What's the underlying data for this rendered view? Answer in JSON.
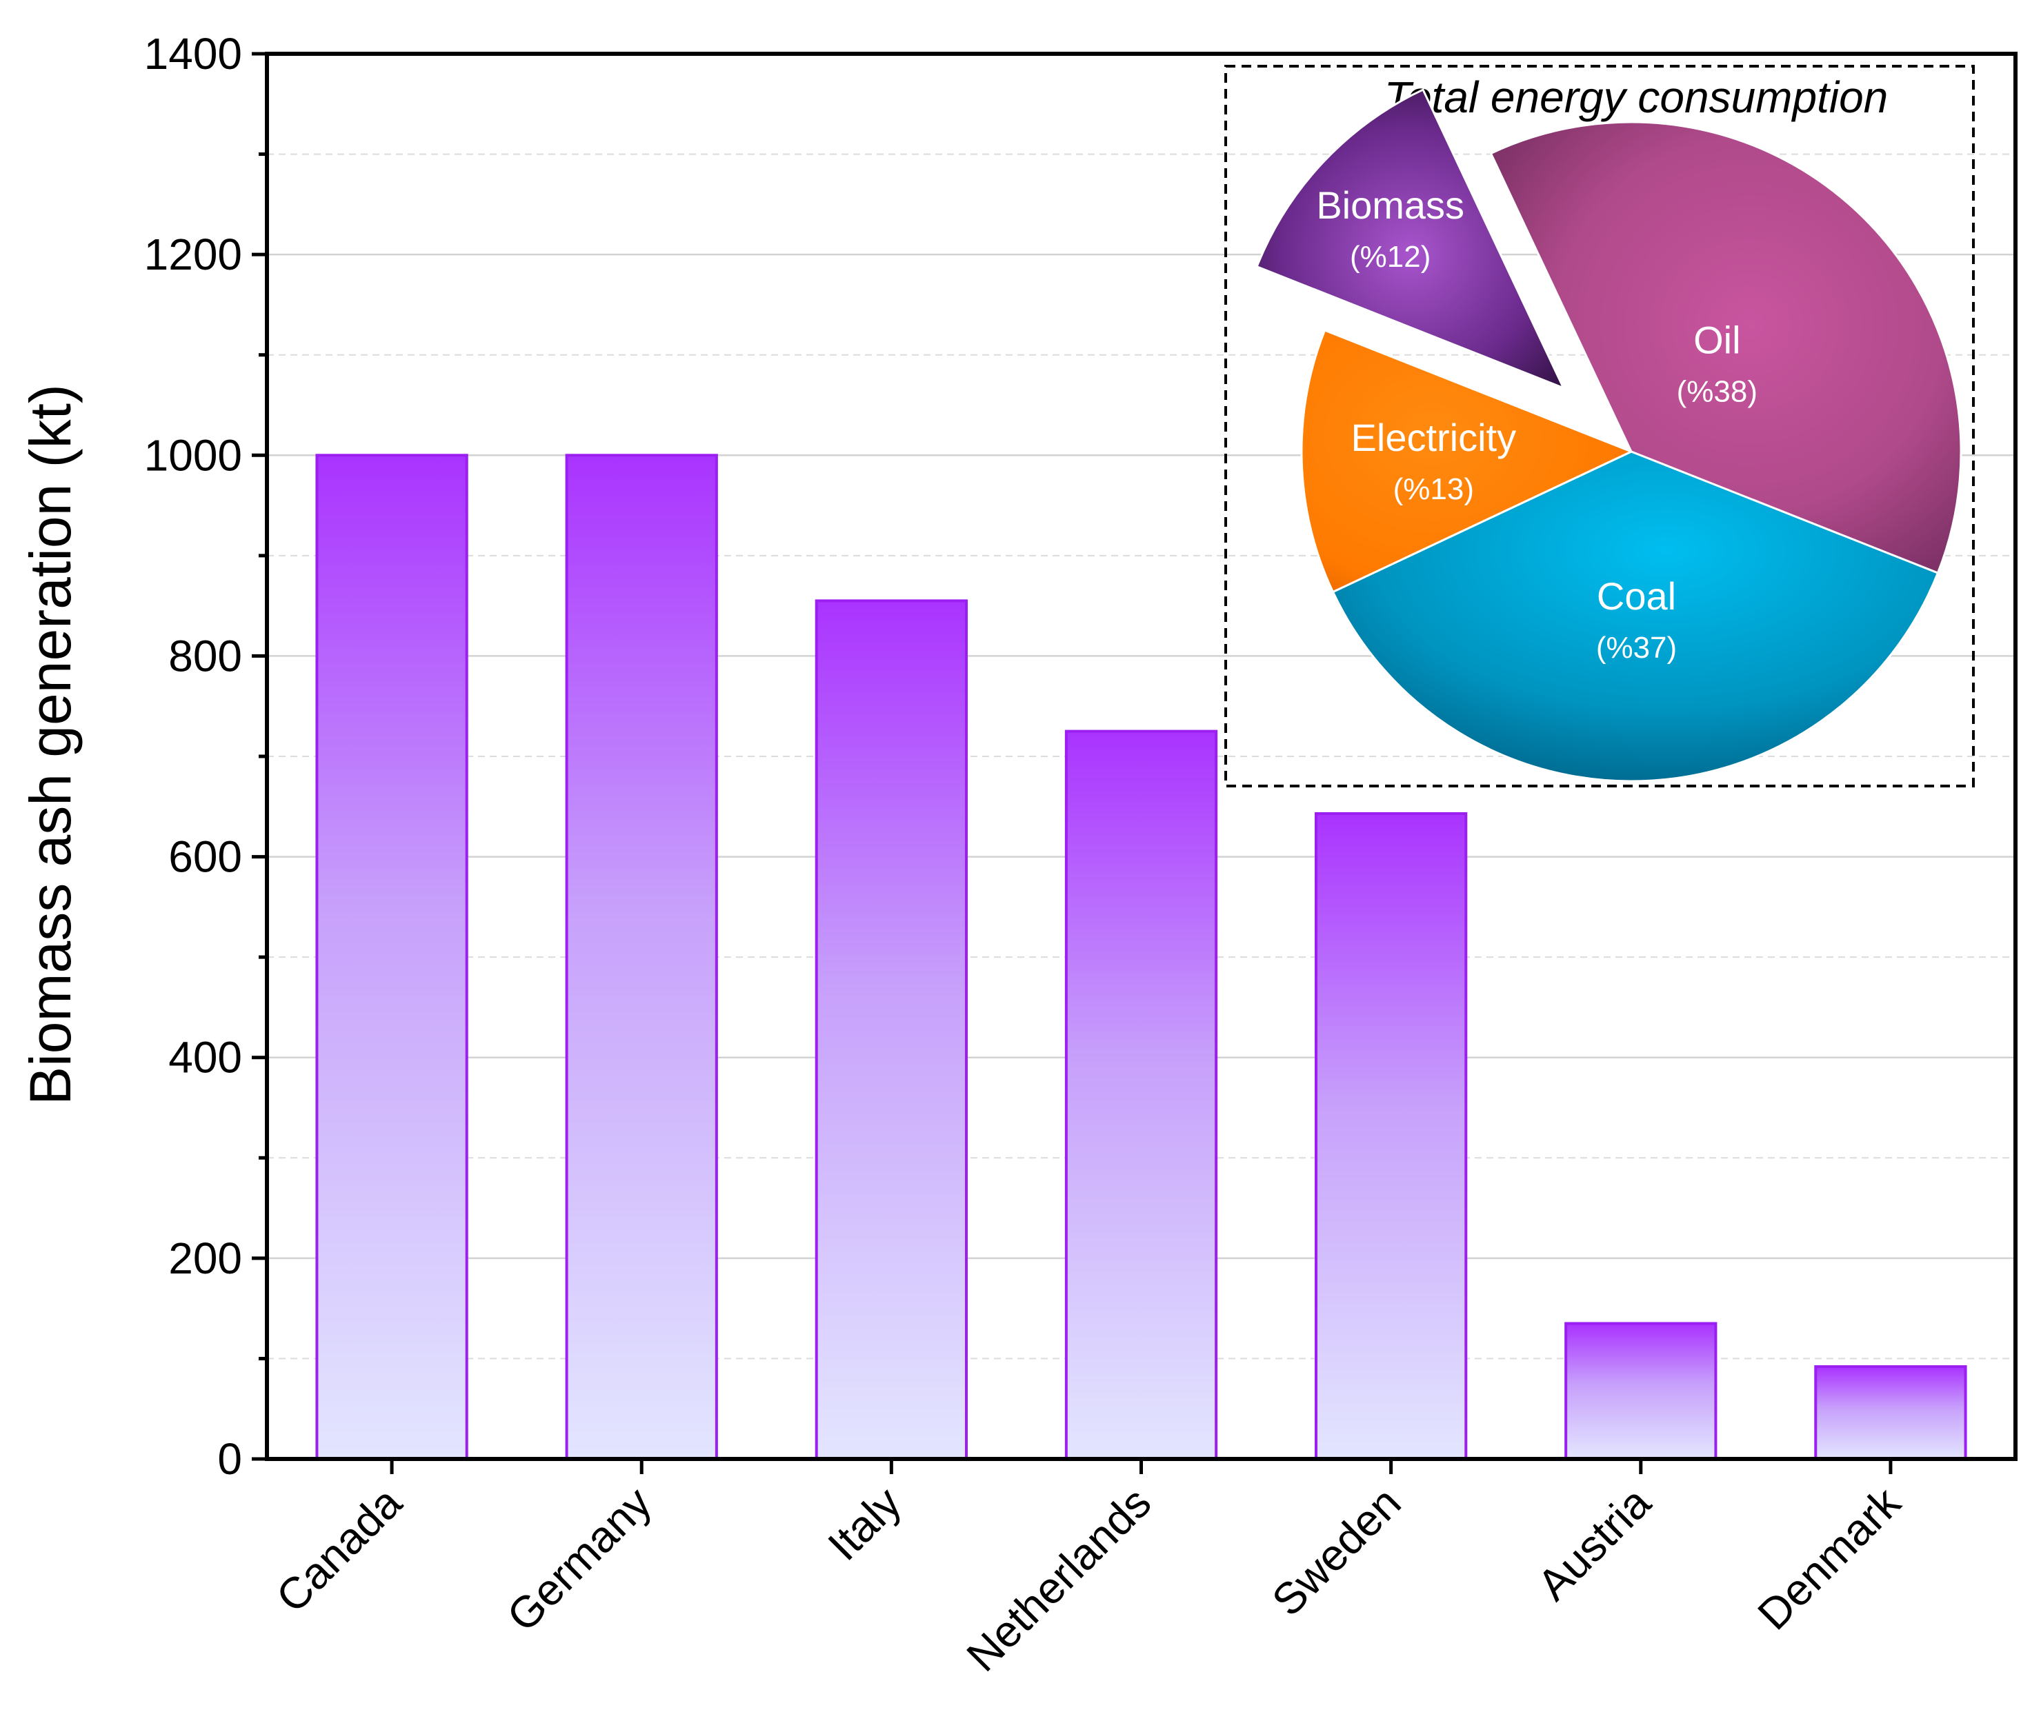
{
  "chart_data": [
    {
      "type": "bar",
      "title": "",
      "xlabel": "",
      "ylabel": "Biomass ash generation (kt)",
      "ylim": [
        0,
        1400
      ],
      "yticks": [
        0,
        200,
        400,
        600,
        800,
        1000,
        1200,
        1400
      ],
      "grid": true,
      "categories": [
        "Canada",
        "Germany",
        "Italy",
        "Netherlands",
        "Sweden",
        "Austria",
        "Denmark"
      ],
      "values": [
        1000,
        1000,
        855,
        725,
        643,
        135,
        92
      ],
      "colors": {
        "bar_top": "#aa33ff",
        "bar_bottom": "#e3e6ff",
        "bar_edge": "#9b1ff0"
      }
    },
    {
      "type": "pie",
      "title": "Total energy consumption",
      "slices": [
        {
          "name": "Oil",
          "label": "(%38)",
          "value": 38,
          "color": "#c2529a",
          "exploded": false
        },
        {
          "name": "Coal",
          "label": "(%37)",
          "value": 37,
          "color": "#00b2e3",
          "exploded": false
        },
        {
          "name": "Electricity",
          "label": "(%13)",
          "value": 13,
          "color": "#ff7f00",
          "exploded": false
        },
        {
          "name": "Biomass",
          "label": "(%12)",
          "value": 12,
          "color": "#8a3bb0",
          "exploded": true
        }
      ]
    }
  ]
}
